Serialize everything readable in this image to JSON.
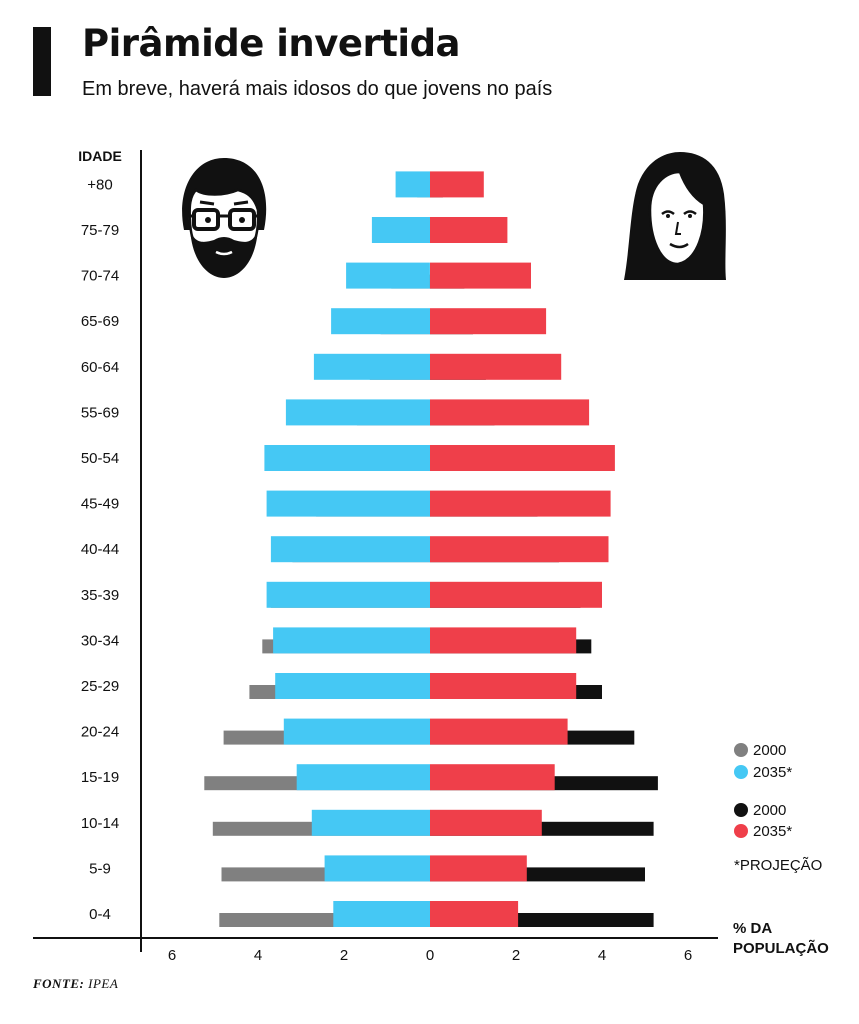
{
  "header": {
    "title": "Pirâmide invertida",
    "subtitle": "Em breve, haverá mais idosos do que jovens no país"
  },
  "source": {
    "label": "FONTE:",
    "value": "IPEA"
  },
  "colors": {
    "men_2000": "#808080",
    "men_2035": "#45c8f4",
    "women_2000": "#111111",
    "women_2035": "#ef3f4a"
  },
  "chart_data": {
    "type": "bar",
    "orientation": "horizontal",
    "layout": "population-pyramid",
    "yaxis_title": "IDADE",
    "xaxis_title": "% DA POPULAÇÃO",
    "categories": [
      "0-4",
      "5-9",
      "10-14",
      "15-19",
      "20-24",
      "25-29",
      "30-34",
      "35-39",
      "40-44",
      "45-49",
      "50-54",
      "55-69",
      "60-64",
      "65-69",
      "70-74",
      "75-79",
      "+80"
    ],
    "xticks": [
      {
        "label": "6",
        "value": -6
      },
      {
        "label": "4",
        "value": -4
      },
      {
        "label": "2",
        "value": -2
      },
      {
        "label": "0",
        "value": 0
      },
      {
        "label": "2",
        "value": 2
      },
      {
        "label": "4",
        "value": 4
      },
      {
        "label": "6",
        "value": 6
      }
    ],
    "xlim": [
      -6.7,
      6.8
    ],
    "series": [
      {
        "key": "men_2000",
        "side": "left",
        "layer": "back",
        "values": [
          4.9,
          4.85,
          5.05,
          5.25,
          4.8,
          4.2,
          3.9,
          3.7,
          3.2,
          2.65,
          2.15,
          1.7,
          1.4,
          1.15,
          0.9,
          0.6,
          0.3
        ]
      },
      {
        "key": "men_2035",
        "side": "left",
        "layer": "front",
        "values": [
          2.25,
          2.45,
          2.75,
          3.1,
          3.4,
          3.6,
          3.65,
          3.8,
          3.7,
          3.8,
          3.85,
          3.35,
          2.7,
          2.3,
          1.95,
          1.35,
          0.8
        ]
      },
      {
        "key": "women_2000",
        "side": "right",
        "layer": "back",
        "values": [
          5.2,
          5.0,
          5.2,
          5.3,
          4.75,
          4.0,
          3.75,
          3.5,
          3.0,
          2.5,
          2.0,
          1.5,
          1.3,
          1.0,
          0.8,
          0.5,
          0.3
        ]
      },
      {
        "key": "women_2035",
        "side": "right",
        "layer": "front",
        "values": [
          2.05,
          2.25,
          2.6,
          2.9,
          3.2,
          3.4,
          3.4,
          4.0,
          4.15,
          4.2,
          4.3,
          3.7,
          3.05,
          2.7,
          2.35,
          1.8,
          1.25
        ]
      }
    ],
    "legend": [
      {
        "label": "2000",
        "color_key": "men_2000"
      },
      {
        "label": "2035*",
        "color_key": "men_2035"
      },
      {
        "label": "2000",
        "color_key": "women_2000"
      },
      {
        "label": "2035*",
        "color_key": "women_2035"
      }
    ],
    "legend_note": "*PROJEÇÃO",
    "legend_position": "right"
  }
}
